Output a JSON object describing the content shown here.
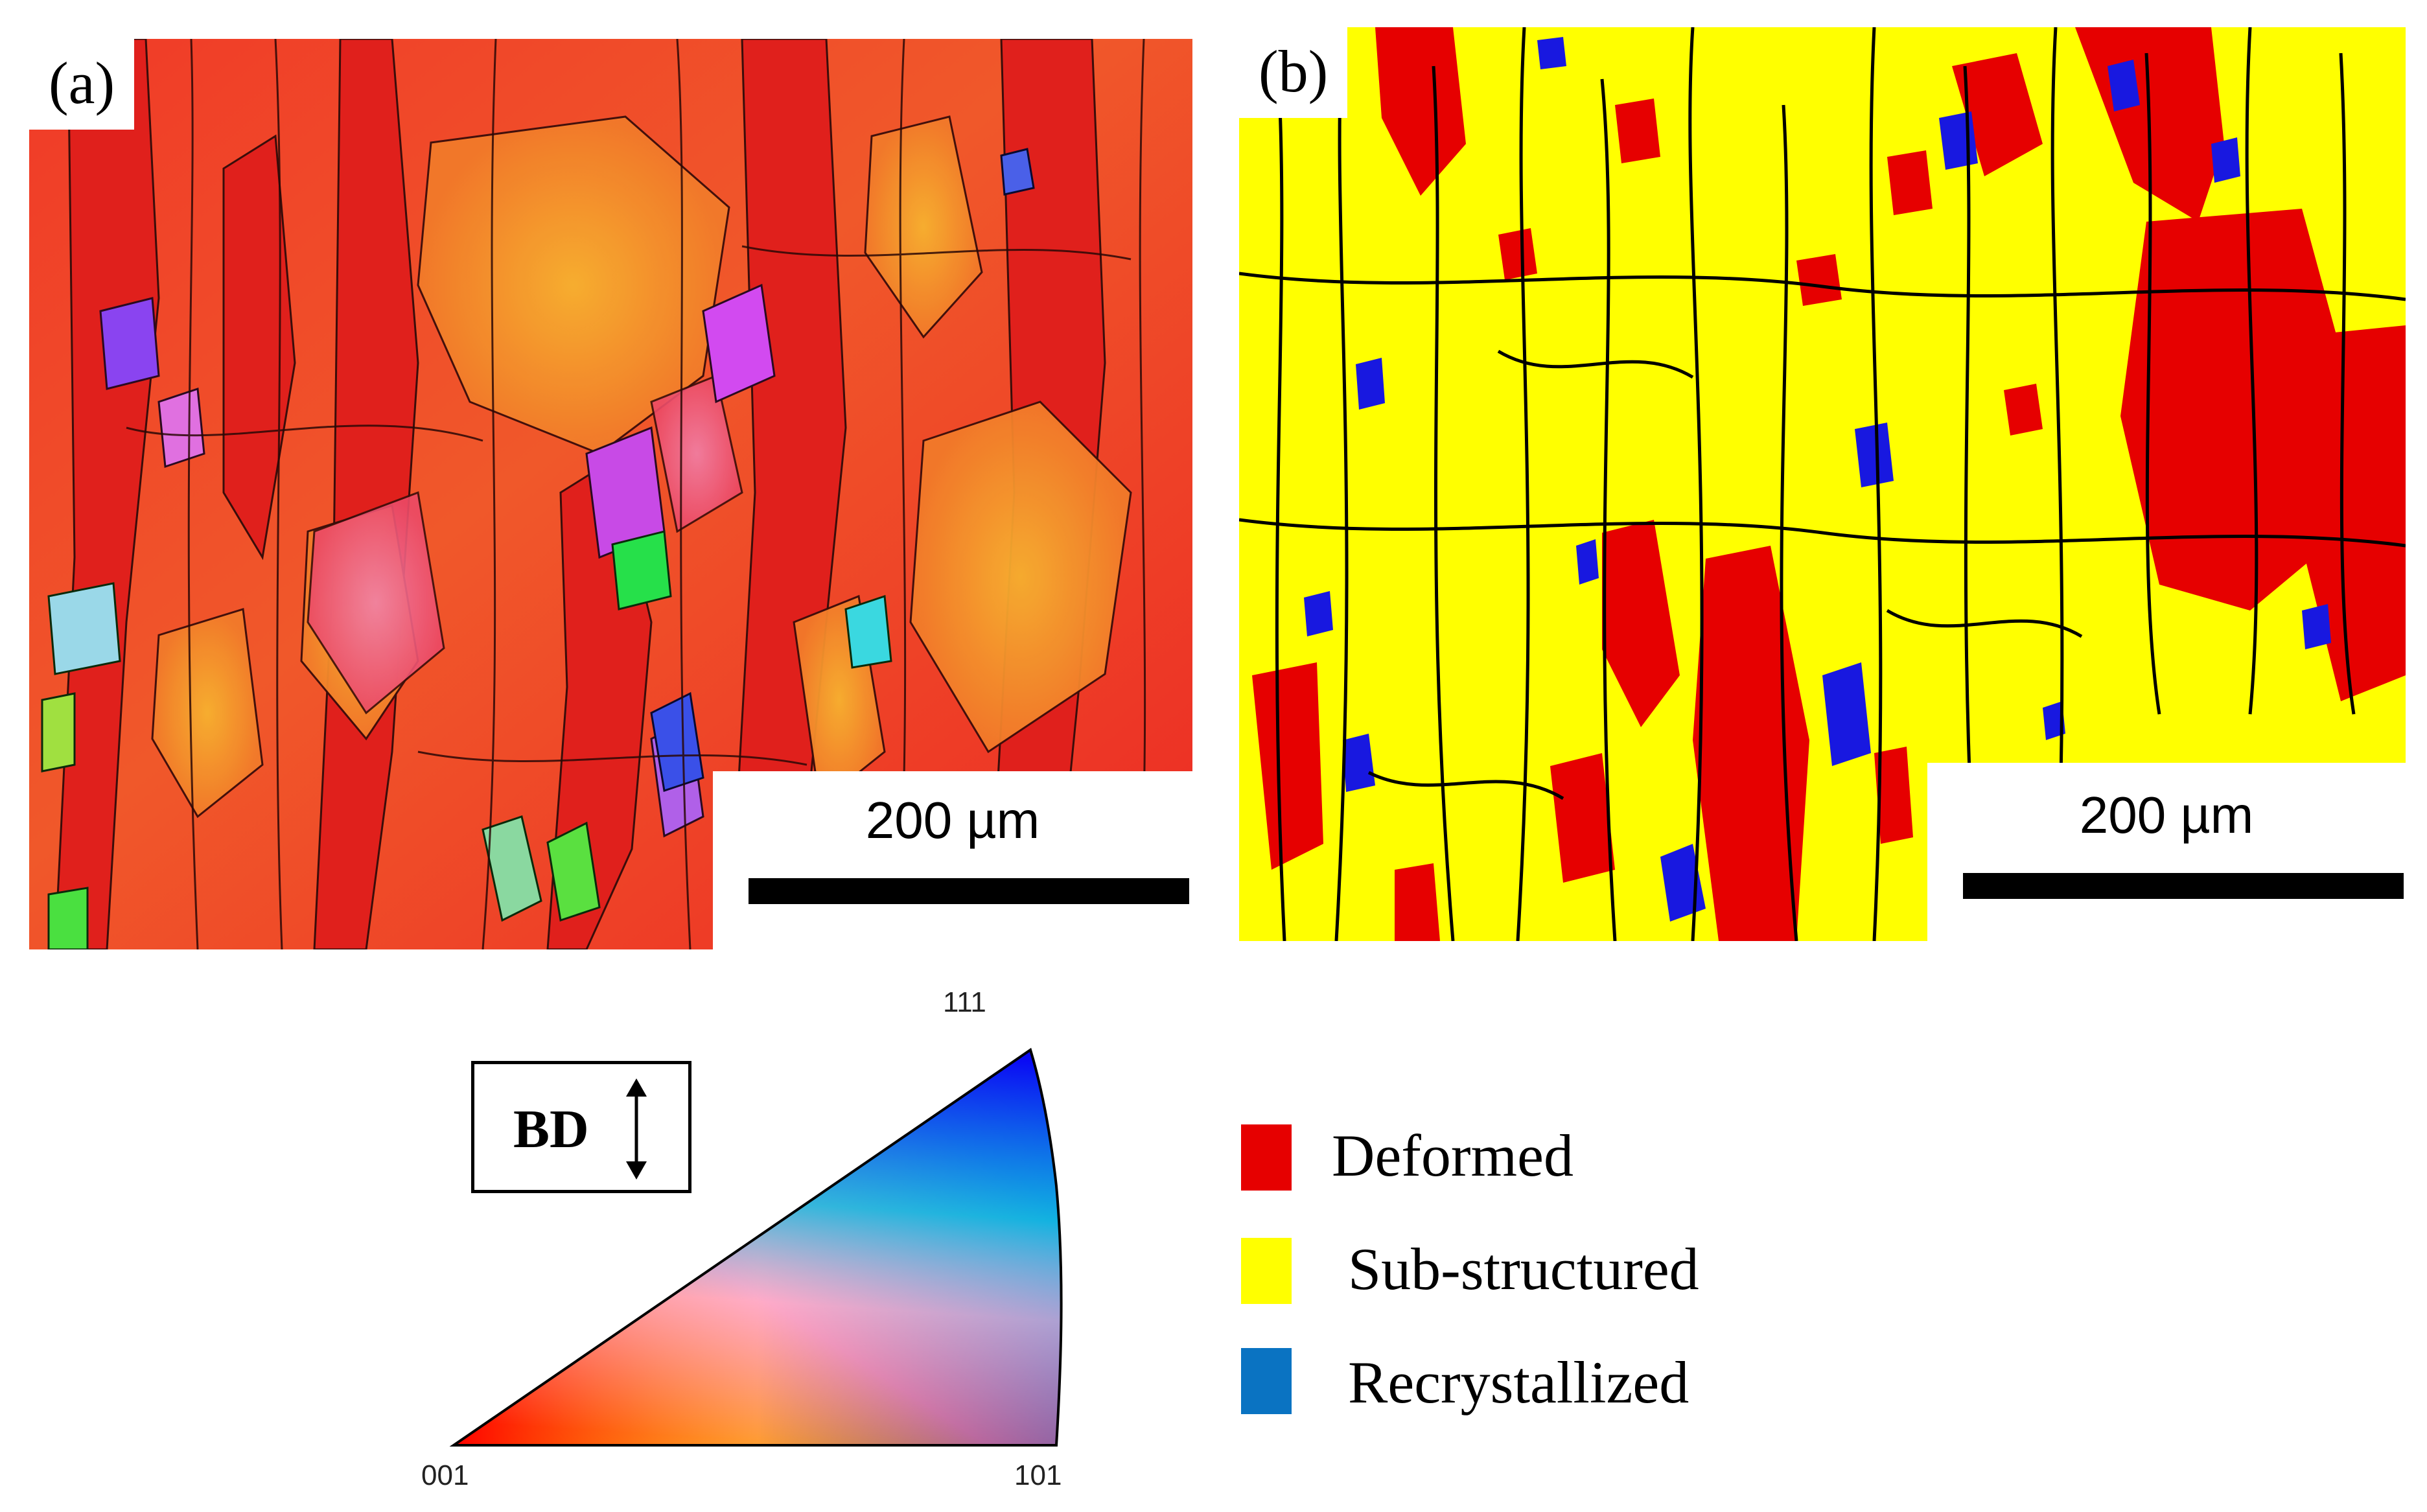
{
  "panels": [
    {
      "label": "(a)",
      "scale_text": "200 µm"
    },
    {
      "label": "(b)",
      "scale_text": "200 µm"
    }
  ],
  "ipf_key": {
    "direction": "BD",
    "poles": [
      "001",
      "101",
      "111"
    ]
  },
  "legend": [
    {
      "label": "Deformed",
      "color": "#e60000"
    },
    {
      "label": "Sub-structured",
      "color": "#ffff00"
    },
    {
      "label": "Recrystallized",
      "color": "#0a73c2"
    }
  ],
  "map_colors": {
    "ipf_main": "#ee2a22",
    "ipf_orange": "#f59a22",
    "recrystallized_map": "#1818e0",
    "boundary": "#000000"
  }
}
